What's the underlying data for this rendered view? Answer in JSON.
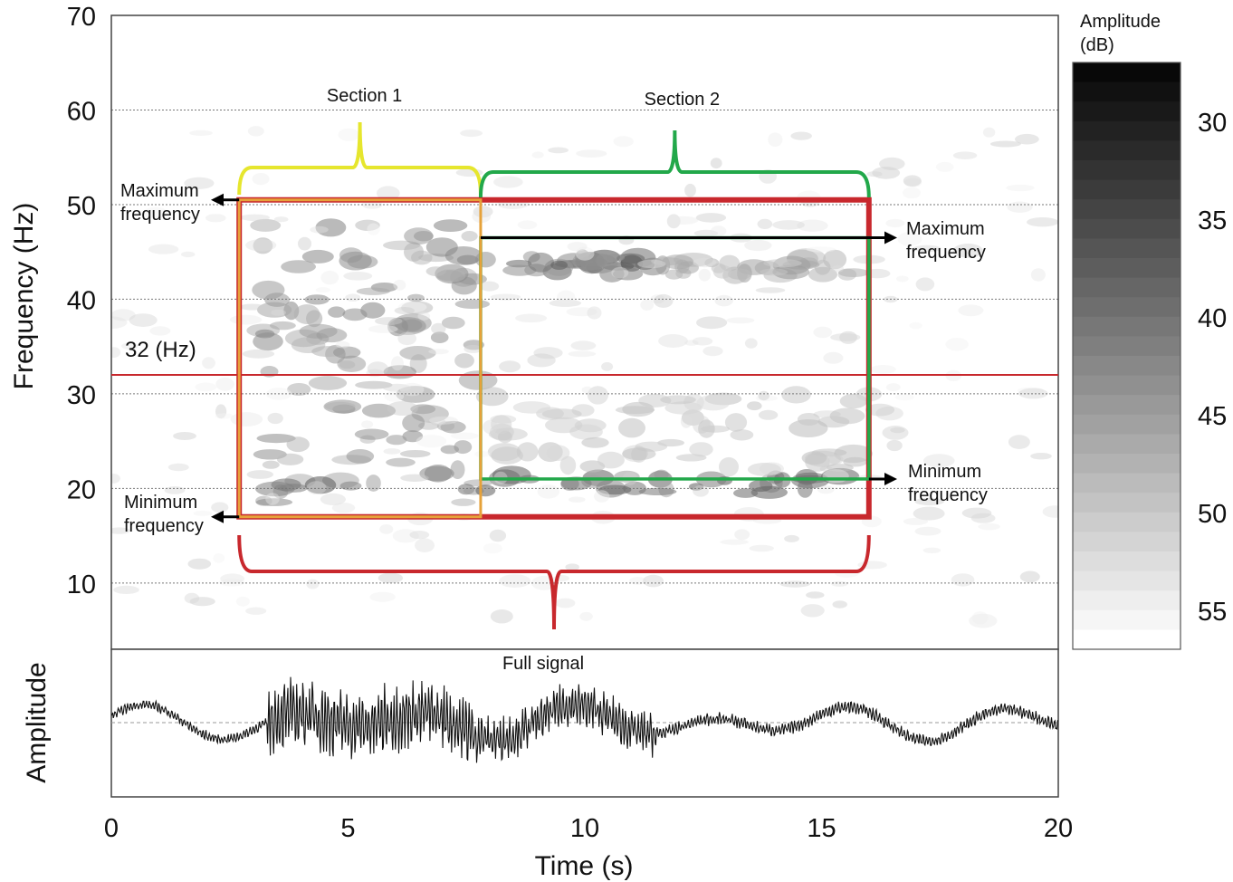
{
  "chart_data": [
    {
      "type": "heatmap",
      "xlabel": "",
      "ylabel": "Frequency (Hz)",
      "xlim": [
        0,
        20
      ],
      "ylim": [
        3,
        70
      ],
      "y_ticks": [
        10,
        20,
        30,
        40,
        50,
        60,
        70
      ],
      "grid": true,
      "colorbar": {
        "title_lines": [
          "Amplitude",
          "(dB)"
        ],
        "ticks": [
          30,
          35,
          40,
          45,
          50,
          55
        ],
        "range": [
          27,
          57
        ],
        "colormap": "grayscale (dark = high amplitude)"
      },
      "energy_bands": [
        {
          "t": [
            3.2,
            7.8
          ],
          "f": [
            18.5,
            48
          ],
          "level": 0.55
        },
        {
          "t": [
            7.8,
            11.5
          ],
          "f": [
            42.5,
            44.5
          ],
          "level": 0.85
        },
        {
          "t": [
            11.5,
            15.8
          ],
          "f": [
            42.5,
            44.5
          ],
          "level": 0.45
        },
        {
          "t": [
            3.2,
            15.8
          ],
          "f": [
            19.5,
            21.5
          ],
          "level": 0.75
        },
        {
          "t": [
            8,
            16
          ],
          "f": [
            22,
            30
          ],
          "level": 0.3
        }
      ],
      "annotations": {
        "section1": {
          "label": "Section 1",
          "t": [
            2.7,
            7.8
          ],
          "color": "#e6e62e"
        },
        "section2": {
          "label": "Section 2",
          "t": [
            7.8,
            16
          ],
          "color": "#22a84a"
        },
        "full_box": {
          "t": [
            2.7,
            16
          ],
          "f": [
            17,
            50.5
          ],
          "color": "#c8282d"
        },
        "section2_box": {
          "t": [
            7.8,
            16
          ],
          "f": [
            21,
            46.5
          ]
        },
        "reference_line": {
          "label": "32 (Hz)",
          "f": 32,
          "color": "#c8282d"
        },
        "max_freq_left": {
          "line1": "Maximum",
          "line2": "frequency",
          "f": 50.5
        },
        "min_freq_left": {
          "line1": "Minimum",
          "line2": "frequency",
          "f": 17
        },
        "max_freq_right": {
          "line1": "Maximum",
          "line2": "frequency",
          "f": 46.5
        },
        "min_freq_right": {
          "line1": "Minimum",
          "line2": "frequency",
          "f": 21
        }
      }
    },
    {
      "type": "line",
      "title": "Full  signal",
      "xlabel": "Time (s)",
      "ylabel": "Amplitude",
      "xlim": [
        0,
        20
      ],
      "x_ticks": [
        0,
        5,
        10,
        15,
        20
      ],
      "baseline": 0,
      "envelope": [
        {
          "t": [
            0,
            3.3
          ],
          "amp": 0.08
        },
        {
          "t": [
            3.3,
            7.8
          ],
          "amp": 0.55
        },
        {
          "t": [
            7.8,
            11.5
          ],
          "amp": 0.35
        },
        {
          "t": [
            11.5,
            20
          ],
          "amp": 0.1
        }
      ]
    }
  ]
}
